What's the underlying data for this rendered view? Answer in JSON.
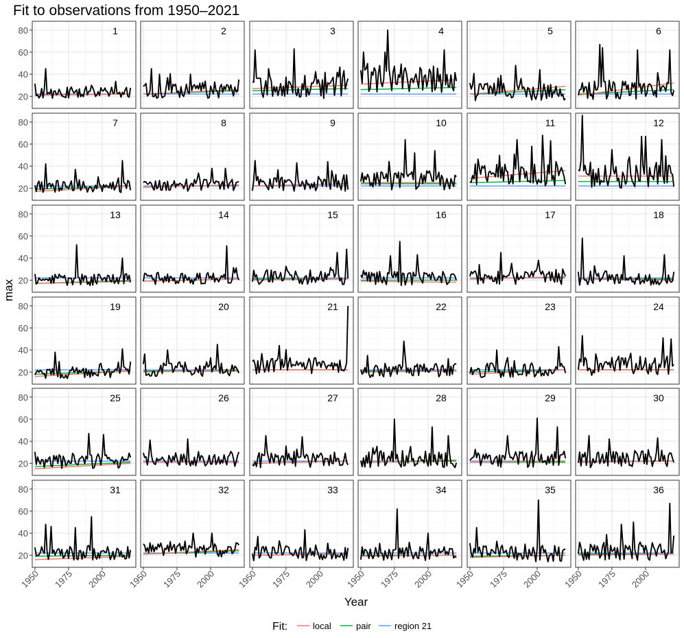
{
  "title": "Fit to observations from 1950–2021",
  "chart_data": {
    "type": "line",
    "title": "Fit to observations from 1950–2021",
    "xlabel": "Year",
    "ylabel": "max",
    "xlim": [
      1948,
      2025
    ],
    "ylim": [
      9,
      88
    ],
    "x_ticks": [
      1950,
      1975,
      2000
    ],
    "x_tick_labels": [
      "1950",
      "1975",
      "2000"
    ],
    "y_ticks": [
      20,
      40,
      60,
      80
    ],
    "y_tick_labels": [
      "20",
      "40",
      "60",
      "80"
    ],
    "grid": true,
    "legend": {
      "title": "Fit:",
      "position": "bottom",
      "entries": [
        {
          "name": "local",
          "color": "#F8766D"
        },
        {
          "name": "pair",
          "color": "#00BA38"
        },
        {
          "name": "region 21",
          "color": "#619CFF"
        }
      ]
    },
    "observed_color": "#000000",
    "x_range": [
      1950,
      2021
    ],
    "panels": [
      {
        "label": "1",
        "obs_mean": 23,
        "obs_var": 5,
        "peaks": [
          [
            1958,
            45
          ]
        ],
        "local": [
          21,
          22
        ],
        "pair": [
          21,
          22
        ],
        "region": [
          22,
          22
        ]
      },
      {
        "label": "2",
        "obs_mean": 25,
        "obs_var": 7,
        "peaks": [
          [
            1956,
            45
          ],
          [
            1962,
            40
          ],
          [
            1985,
            40
          ]
        ],
        "local": [
          22,
          26
        ],
        "pair": [
          22,
          25
        ],
        "region": [
          22,
          22
        ]
      },
      {
        "label": "3",
        "obs_mean": 28,
        "obs_var": 10,
        "peaks": [
          [
            1952,
            62
          ],
          [
            1981,
            63
          ],
          [
            1962,
            45
          ]
        ],
        "local": [
          27,
          30
        ],
        "pair": [
          25,
          27
        ],
        "region": [
          22,
          22
        ]
      },
      {
        "label": "4",
        "obs_mean": 35,
        "obs_var": 12,
        "peaks": [
          [
            1970,
            80
          ],
          [
            1968,
            60
          ],
          [
            2012,
            62
          ],
          [
            1952,
            60
          ]
        ],
        "local": [
          31,
          35
        ],
        "pair": [
          26,
          28
        ],
        "region": [
          22,
          22
        ]
      },
      {
        "label": "5",
        "obs_mean": 24,
        "obs_var": 8,
        "peaks": [
          [
            1984,
            48
          ],
          [
            2002,
            44
          ]
        ],
        "local": [
          22,
          29
        ],
        "pair": [
          22,
          26
        ],
        "region": [
          22,
          22
        ]
      },
      {
        "label": "6",
        "obs_mean": 25,
        "obs_var": 8,
        "peaks": [
          [
            1966,
            67
          ],
          [
            1968,
            64
          ],
          [
            1994,
            62
          ],
          [
            2018,
            62
          ]
        ],
        "local": [
          21,
          32
        ],
        "pair": [
          22,
          26
        ],
        "region": [
          22,
          22
        ]
      },
      {
        "label": "7",
        "obs_mean": 21,
        "obs_var": 5,
        "peaks": [
          [
            1958,
            42
          ],
          [
            2015,
            45
          ],
          [
            1980,
            37
          ]
        ],
        "local": [
          17,
          22
        ],
        "pair": [
          19,
          22
        ],
        "region": [
          22,
          22
        ]
      },
      {
        "label": "8",
        "obs_mean": 22,
        "obs_var": 5,
        "peaks": [
          [
            2001,
            38
          ],
          [
            2011,
            38
          ]
        ],
        "local": [
          21,
          23
        ],
        "pair": [
          21,
          23
        ],
        "region": [
          22,
          22
        ]
      },
      {
        "label": "9",
        "obs_mean": 24,
        "obs_var": 7,
        "peaks": [
          [
            1952,
            45
          ],
          [
            1983,
            43
          ],
          [
            2006,
            44
          ]
        ],
        "local": [
          22,
          24
        ],
        "pair": [
          22,
          24
        ],
        "region": [
          22,
          22
        ]
      },
      {
        "label": "10",
        "obs_mean": 26,
        "obs_var": 8,
        "peaks": [
          [
            1983,
            64
          ],
          [
            2005,
            54
          ],
          [
            1990,
            52
          ]
        ],
        "local": [
          25,
          25
        ],
        "pair": [
          24,
          24
        ],
        "region": [
          22,
          22
        ]
      },
      {
        "label": "11",
        "obs_mean": 32,
        "obs_var": 10,
        "peaks": [
          [
            1985,
            64
          ],
          [
            2004,
            68
          ],
          [
            2010,
            63
          ],
          [
            1996,
            58
          ]
        ],
        "local": [
          29,
          36
        ],
        "pair": [
          25,
          27
        ],
        "region": [
          22,
          22
        ]
      },
      {
        "label": "12",
        "obs_mean": 30,
        "obs_var": 10,
        "peaks": [
          [
            1953,
            86
          ],
          [
            1997,
            67
          ],
          [
            2000,
            67
          ],
          [
            2012,
            64
          ],
          [
            1975,
            55
          ]
        ],
        "local": [
          31,
          31
        ],
        "pair": [
          26,
          26
        ],
        "region": [
          22,
          22
        ]
      },
      {
        "label": "13",
        "obs_mean": 20,
        "obs_var": 5,
        "peaks": [
          [
            1981,
            52
          ],
          [
            2015,
            40
          ]
        ],
        "local": [
          17,
          20
        ],
        "pair": [
          17,
          19
        ],
        "region": [
          22,
          22
        ]
      },
      {
        "label": "14",
        "obs_mean": 21,
        "obs_var": 5,
        "peaks": [
          [
            2012,
            51
          ],
          [
            2019,
            31
          ]
        ],
        "local": [
          19,
          21
        ],
        "pair": [
          19,
          21
        ],
        "region": [
          22,
          22
        ]
      },
      {
        "label": "15",
        "obs_mean": 22,
        "obs_var": 6,
        "peaks": [
          [
            2020,
            48
          ],
          [
            2013,
            45
          ]
        ],
        "local": [
          20,
          21
        ],
        "pair": [
          21,
          21
        ],
        "region": [
          22,
          22
        ]
      },
      {
        "label": "16",
        "obs_mean": 21,
        "obs_var": 6,
        "peaks": [
          [
            1979,
            55
          ],
          [
            1972,
            42
          ],
          [
            1992,
            43
          ]
        ],
        "local": [
          19,
          18
        ],
        "pair": [
          20,
          20
        ],
        "region": [
          22,
          22
        ]
      },
      {
        "label": "17",
        "obs_mean": 22,
        "obs_var": 6,
        "peaks": [
          [
            1973,
            45
          ],
          [
            2001,
            38
          ],
          [
            2019,
            30
          ]
        ],
        "local": [
          21,
          23
        ],
        "pair": [
          21,
          23
        ],
        "region": [
          22,
          22
        ]
      },
      {
        "label": "18",
        "obs_mean": 21,
        "obs_var": 6,
        "peaks": [
          [
            1953,
            58
          ],
          [
            1984,
            42
          ],
          [
            2014,
            43
          ]
        ],
        "local": [
          21,
          20
        ],
        "pair": [
          21,
          21
        ],
        "region": [
          22,
          22
        ]
      },
      {
        "label": "19",
        "obs_mean": 19,
        "obs_var": 5,
        "peaks": [
          [
            1965,
            38
          ],
          [
            2015,
            41
          ]
        ],
        "local": [
          16,
          21
        ],
        "pair": [
          18,
          21
        ],
        "region": [
          22,
          22
        ]
      },
      {
        "label": "20",
        "obs_mean": 22,
        "obs_var": 6,
        "peaks": [
          [
            1968,
            40
          ],
          [
            2005,
            45
          ]
        ],
        "local": [
          20,
          22
        ],
        "pair": [
          21,
          21
        ],
        "region": [
          22,
          22
        ]
      },
      {
        "label": "21",
        "obs_mean": 25,
        "obs_var": 7,
        "peaks": [
          [
            2021,
            80
          ],
          [
            1970,
            44
          ]
        ],
        "local": [
          22,
          22
        ],
        "pair": [
          22,
          22
        ],
        "region": [
          22,
          22
        ]
      },
      {
        "label": "22",
        "obs_mean": 21,
        "obs_var": 6,
        "peaks": [
          [
            1982,
            48
          ],
          [
            1955,
            35
          ]
        ],
        "local": [
          20,
          21
        ],
        "pair": [
          21,
          21
        ],
        "region": [
          22,
          22
        ]
      },
      {
        "label": "23",
        "obs_mean": 21,
        "obs_var": 6,
        "peaks": [
          [
            1970,
            40
          ],
          [
            2016,
            43
          ]
        ],
        "local": [
          18,
          22
        ],
        "pair": [
          20,
          22
        ],
        "region": [
          22,
          22
        ]
      },
      {
        "label": "24",
        "obs_mean": 25,
        "obs_var": 8,
        "peaks": [
          [
            1953,
            53
          ],
          [
            2013,
            51
          ],
          [
            2019,
            50
          ]
        ],
        "local": [
          22,
          22
        ],
        "pair": [
          22,
          22
        ],
        "region": [
          22,
          22
        ]
      },
      {
        "label": "25",
        "obs_mean": 21,
        "obs_var": 6,
        "peaks": [
          [
            1990,
            47
          ],
          [
            2001,
            46
          ]
        ],
        "local": [
          15,
          20
        ],
        "pair": [
          17,
          21
        ],
        "region": [
          22,
          22
        ]
      },
      {
        "label": "26",
        "obs_mean": 23,
        "obs_var": 6,
        "peaks": [
          [
            1955,
            41
          ],
          [
            1983,
            42
          ]
        ],
        "local": [
          21,
          21
        ],
        "pair": [
          21,
          21
        ],
        "region": [
          22,
          22
        ]
      },
      {
        "label": "27",
        "obs_mean": 22,
        "obs_var": 6,
        "peaks": [
          [
            1960,
            45
          ],
          [
            1987,
            44
          ]
        ],
        "local": [
          20,
          22
        ],
        "pair": [
          20,
          22
        ],
        "region": [
          22,
          22
        ]
      },
      {
        "label": "28",
        "obs_mean": 23,
        "obs_var": 7,
        "peaks": [
          [
            1975,
            60
          ],
          [
            2003,
            53
          ],
          [
            2015,
            45
          ]
        ],
        "local": [
          21,
          23
        ],
        "pair": [
          21,
          22
        ],
        "region": [
          22,
          22
        ]
      },
      {
        "label": "29",
        "obs_mean": 23,
        "obs_var": 7,
        "peaks": [
          [
            2000,
            61
          ],
          [
            1978,
            45
          ],
          [
            2015,
            53
          ]
        ],
        "local": [
          21,
          22
        ],
        "pair": [
          21,
          21
        ],
        "region": [
          22,
          22
        ]
      },
      {
        "label": "30",
        "obs_mean": 23,
        "obs_var": 7,
        "peaks": [
          [
            1958,
            45
          ],
          [
            1973,
            42
          ],
          [
            2009,
            43
          ]
        ],
        "local": [
          21,
          22
        ],
        "pair": [
          21,
          22
        ],
        "region": [
          22,
          22
        ]
      },
      {
        "label": "31",
        "obs_mean": 21,
        "obs_var": 6,
        "peaks": [
          [
            1958,
            48
          ],
          [
            1962,
            46
          ],
          [
            1992,
            55
          ],
          [
            1980,
            45
          ]
        ],
        "local": [
          16,
          19
        ],
        "pair": [
          19,
          20
        ],
        "region": [
          22,
          22
        ]
      },
      {
        "label": "32",
        "obs_mean": 24,
        "obs_var": 6,
        "peaks": [
          [
            1987,
            40
          ],
          [
            2001,
            40
          ]
        ],
        "local": [
          21,
          25
        ],
        "pair": [
          21,
          24
        ],
        "region": [
          22,
          22
        ]
      },
      {
        "label": "33",
        "obs_mean": 21,
        "obs_var": 6,
        "peaks": [
          [
            1989,
            43
          ],
          [
            1954,
            37
          ]
        ],
        "local": [
          20,
          21
        ],
        "pair": [
          20,
          21
        ],
        "region": [
          22,
          22
        ]
      },
      {
        "label": "34",
        "obs_mean": 21,
        "obs_var": 6,
        "peaks": [
          [
            1977,
            62
          ],
          [
            2000,
            40
          ]
        ],
        "local": [
          19,
          20
        ],
        "pair": [
          20,
          20
        ],
        "region": [
          22,
          22
        ]
      },
      {
        "label": "35",
        "obs_mean": 21,
        "obs_var": 7,
        "peaks": [
          [
            2001,
            70
          ],
          [
            1955,
            45
          ]
        ],
        "local": [
          18,
          20
        ],
        "pair": [
          19,
          20
        ],
        "region": [
          22,
          22
        ]
      },
      {
        "label": "36",
        "obs_mean": 23,
        "obs_var": 8,
        "peaks": [
          [
            2018,
            67
          ],
          [
            1982,
            48
          ],
          [
            1991,
            50
          ]
        ],
        "local": [
          20,
          21
        ],
        "pair": [
          21,
          21
        ],
        "region": [
          22,
          22
        ]
      }
    ]
  }
}
